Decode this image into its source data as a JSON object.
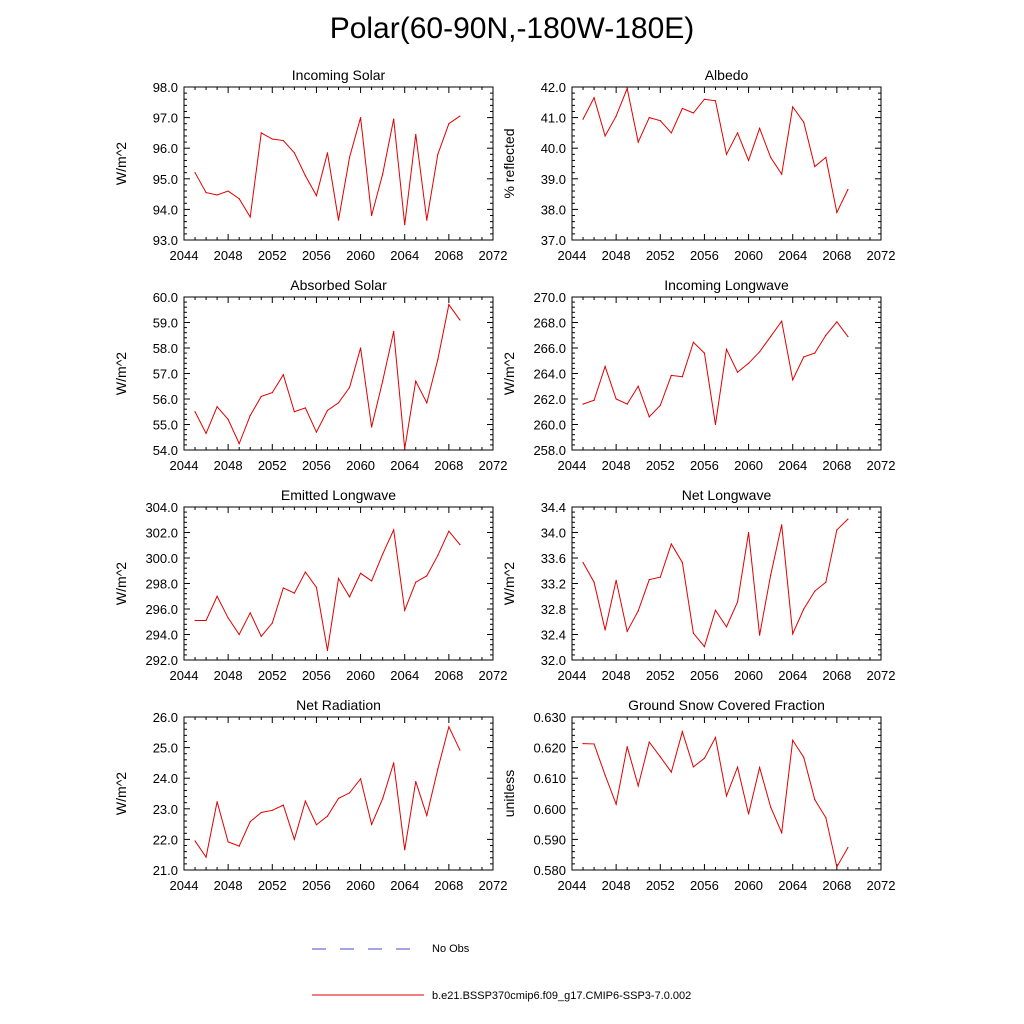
{
  "page_title": "Polar(60-90N,-180W-180E)",
  "legend": {
    "obs_label": "No Obs",
    "obs_color": "#4a4ac8",
    "model_label": "b.e21.BSSP370cmip6.f09_g17.CMIP6-SSP3-7.0.002",
    "model_color": "#e00000"
  },
  "chart_data": [
    {
      "type": "line",
      "title": "Incoming Solar",
      "xlabel": "",
      "ylabel": "W/m^2",
      "xlim": [
        2044,
        2072
      ],
      "ylim": [
        93.0,
        98.0
      ],
      "xticks": [
        "2044",
        "2048",
        "2052",
        "2056",
        "2060",
        "2064",
        "2068",
        "2072"
      ],
      "yticks": [
        "93.0",
        "94.0",
        "95.0",
        "96.0",
        "97.0",
        "98.0"
      ],
      "x": [
        2045,
        2046,
        2047,
        2048,
        2049,
        2050,
        2051,
        2052,
        2053,
        2054,
        2055,
        2056,
        2057,
        2058,
        2059,
        2060,
        2061,
        2062,
        2063,
        2064,
        2065,
        2066,
        2067,
        2068,
        2069
      ],
      "series": [
        {
          "name": "b.e21.BSSP370cmip6.f09_g17.CMIP6-SSP3-7.0.002",
          "values": [
            95.2,
            94.55,
            94.47,
            94.6,
            94.35,
            93.75,
            96.5,
            96.3,
            96.25,
            95.85,
            95.1,
            94.45,
            95.85,
            93.65,
            95.7,
            97.0,
            93.8,
            95.15,
            96.95,
            93.5,
            96.45,
            93.65,
            95.8,
            96.8,
            97.05
          ]
        }
      ]
    },
    {
      "type": "line",
      "title": "Albedo",
      "xlabel": "",
      "ylabel": "% reflected",
      "xlim": [
        2044,
        2072
      ],
      "ylim": [
        37.0,
        42.0
      ],
      "xticks": [
        "2044",
        "2048",
        "2052",
        "2056",
        "2060",
        "2064",
        "2068",
        "2072"
      ],
      "yticks": [
        "37.0",
        "38.0",
        "39.0",
        "40.0",
        "41.0",
        "42.0"
      ],
      "x": [
        2045,
        2046,
        2047,
        2048,
        2049,
        2050,
        2051,
        2052,
        2053,
        2054,
        2055,
        2056,
        2057,
        2058,
        2059,
        2060,
        2061,
        2062,
        2063,
        2064,
        2065,
        2066,
        2067,
        2068,
        2069
      ],
      "series": [
        {
          "name": "b.e21.BSSP370cmip6.f09_g17.CMIP6-SSP3-7.0.002",
          "values": [
            40.95,
            41.65,
            40.4,
            41.05,
            41.95,
            40.2,
            41.0,
            40.9,
            40.5,
            41.3,
            41.15,
            41.6,
            41.55,
            39.8,
            40.5,
            39.6,
            40.65,
            39.7,
            39.15,
            41.35,
            40.85,
            39.4,
            39.7,
            37.9,
            38.65
          ]
        }
      ]
    },
    {
      "type": "line",
      "title": "Absorbed Solar",
      "xlabel": "",
      "ylabel": "W/m^2",
      "xlim": [
        2044,
        2072
      ],
      "ylim": [
        54.0,
        60.0
      ],
      "xticks": [
        "2044",
        "2048",
        "2052",
        "2056",
        "2060",
        "2064",
        "2068",
        "2072"
      ],
      "yticks": [
        "54.0",
        "55.0",
        "56.0",
        "57.0",
        "58.0",
        "59.0",
        "60.0"
      ],
      "x": [
        2045,
        2046,
        2047,
        2048,
        2049,
        2050,
        2051,
        2052,
        2053,
        2054,
        2055,
        2056,
        2057,
        2058,
        2059,
        2060,
        2061,
        2062,
        2063,
        2064,
        2065,
        2066,
        2067,
        2068,
        2069
      ],
      "series": [
        {
          "name": "b.e21.BSSP370cmip6.f09_g17.CMIP6-SSP3-7.0.002",
          "values": [
            55.5,
            54.65,
            55.7,
            55.2,
            54.25,
            55.35,
            56.1,
            56.25,
            56.95,
            55.5,
            55.65,
            54.7,
            55.55,
            55.85,
            56.45,
            58.0,
            54.9,
            56.7,
            58.65,
            54.05,
            56.7,
            55.85,
            57.55,
            59.7,
            59.1
          ]
        }
      ]
    },
    {
      "type": "line",
      "title": "Incoming Longwave",
      "xlabel": "",
      "ylabel": "W/m^2",
      "xlim": [
        2044,
        2072
      ],
      "ylim": [
        258.0,
        270.0
      ],
      "xticks": [
        "2044",
        "2048",
        "2052",
        "2056",
        "2060",
        "2064",
        "2068",
        "2072"
      ],
      "yticks": [
        "258.0",
        "260.0",
        "262.0",
        "264.0",
        "266.0",
        "268.0",
        "270.0"
      ],
      "x": [
        2045,
        2046,
        2047,
        2048,
        2049,
        2050,
        2051,
        2052,
        2053,
        2054,
        2055,
        2056,
        2057,
        2058,
        2059,
        2060,
        2061,
        2062,
        2063,
        2064,
        2065,
        2066,
        2067,
        2068,
        2069
      ],
      "series": [
        {
          "name": "b.e21.BSSP370cmip6.f09_g17.CMIP6-SSP3-7.0.002",
          "values": [
            261.6,
            261.9,
            264.55,
            262.0,
            261.6,
            263.0,
            260.6,
            261.5,
            263.85,
            263.75,
            266.45,
            265.6,
            260.0,
            265.9,
            264.1,
            264.8,
            265.7,
            266.9,
            268.1,
            263.5,
            265.3,
            265.6,
            267.0,
            268.05,
            266.9
          ]
        }
      ]
    },
    {
      "type": "line",
      "title": "Emitted Longwave",
      "xlabel": "",
      "ylabel": "W/m^2",
      "xlim": [
        2044,
        2072
      ],
      "ylim": [
        292.0,
        304.0
      ],
      "xticks": [
        "2044",
        "2048",
        "2052",
        "2056",
        "2060",
        "2064",
        "2068",
        "2072"
      ],
      "yticks": [
        "292.0",
        "294.0",
        "296.0",
        "298.0",
        "300.0",
        "302.0",
        "304.0"
      ],
      "x": [
        2045,
        2046,
        2047,
        2048,
        2049,
        2050,
        2051,
        2052,
        2053,
        2054,
        2055,
        2056,
        2057,
        2058,
        2059,
        2060,
        2061,
        2062,
        2063,
        2064,
        2065,
        2066,
        2067,
        2068,
        2069
      ],
      "series": [
        {
          "name": "b.e21.BSSP370cmip6.f09_g17.CMIP6-SSP3-7.0.002",
          "values": [
            295.1,
            295.1,
            297.0,
            295.3,
            294.0,
            295.7,
            293.85,
            294.9,
            297.65,
            297.25,
            298.9,
            297.7,
            292.75,
            298.4,
            296.95,
            298.8,
            298.2,
            300.3,
            302.2,
            295.9,
            298.1,
            298.6,
            300.2,
            302.1,
            301.05
          ]
        }
      ]
    },
    {
      "type": "line",
      "title": "Net Longwave",
      "xlabel": "",
      "ylabel": "W/m^2",
      "xlim": [
        2044,
        2072
      ],
      "ylim": [
        32.0,
        34.4
      ],
      "xticks": [
        "2044",
        "2048",
        "2052",
        "2056",
        "2060",
        "2064",
        "2068",
        "2072"
      ],
      "yticks": [
        "32.0",
        "32.4",
        "32.8",
        "33.2",
        "33.6",
        "34.0",
        "34.4"
      ],
      "x": [
        2045,
        2046,
        2047,
        2048,
        2049,
        2050,
        2051,
        2052,
        2053,
        2054,
        2055,
        2056,
        2057,
        2058,
        2059,
        2060,
        2061,
        2062,
        2063,
        2064,
        2065,
        2066,
        2067,
        2068,
        2069
      ],
      "series": [
        {
          "name": "b.e21.BSSP370cmip6.f09_g17.CMIP6-SSP3-7.0.002",
          "values": [
            33.53,
            33.22,
            32.47,
            33.25,
            32.45,
            32.77,
            33.26,
            33.3,
            33.82,
            33.53,
            32.42,
            32.21,
            32.78,
            32.52,
            32.91,
            34.0,
            32.39,
            33.33,
            34.12,
            32.41,
            32.8,
            33.08,
            33.22,
            34.04,
            34.21
          ]
        }
      ]
    },
    {
      "type": "line",
      "title": "Net Radiation",
      "xlabel": "",
      "ylabel": "W/m^2",
      "xlim": [
        2044,
        2072
      ],
      "ylim": [
        21.0,
        26.0
      ],
      "xticks": [
        "2044",
        "2048",
        "2052",
        "2056",
        "2060",
        "2064",
        "2068",
        "2072"
      ],
      "yticks": [
        "21.0",
        "22.0",
        "23.0",
        "24.0",
        "25.0",
        "26.0"
      ],
      "x": [
        2045,
        2046,
        2047,
        2048,
        2049,
        2050,
        2051,
        2052,
        2053,
        2054,
        2055,
        2056,
        2057,
        2058,
        2059,
        2060,
        2061,
        2062,
        2063,
        2064,
        2065,
        2066,
        2067,
        2068,
        2069
      ],
      "series": [
        {
          "name": "b.e21.BSSP370cmip6.f09_g17.CMIP6-SSP3-7.0.002",
          "values": [
            21.95,
            21.42,
            23.23,
            21.92,
            21.78,
            22.58,
            22.88,
            22.95,
            23.12,
            22.0,
            23.25,
            22.48,
            22.76,
            23.34,
            23.52,
            23.98,
            22.49,
            23.33,
            24.5,
            21.66,
            23.89,
            22.78,
            24.3,
            25.68,
            24.92
          ]
        }
      ]
    },
    {
      "type": "line",
      "title": "Ground Snow Covered Fraction",
      "xlabel": "",
      "ylabel": "unitless",
      "xlim": [
        2044,
        2072
      ],
      "ylim": [
        0.58,
        0.63
      ],
      "xticks": [
        "2044",
        "2048",
        "2052",
        "2056",
        "2060",
        "2064",
        "2068",
        "2072"
      ],
      "yticks": [
        "0.580",
        "0.590",
        "0.600",
        "0.610",
        "0.620",
        "0.630"
      ],
      "x": [
        2045,
        2046,
        2047,
        2048,
        2049,
        2050,
        2051,
        2052,
        2053,
        2054,
        2055,
        2056,
        2057,
        2058,
        2059,
        2060,
        2061,
        2062,
        2063,
        2064,
        2065,
        2066,
        2067,
        2068,
        2069
      ],
      "series": [
        {
          "name": "b.e21.BSSP370cmip6.f09_g17.CMIP6-SSP3-7.0.002",
          "values": [
            0.6213,
            0.6212,
            0.611,
            0.6015,
            0.6203,
            0.6075,
            0.6218,
            0.617,
            0.612,
            0.6252,
            0.6137,
            0.6165,
            0.6233,
            0.6042,
            0.6136,
            0.5983,
            0.6135,
            0.6006,
            0.5922,
            0.6224,
            0.6168,
            0.603,
            0.5971,
            0.581,
            0.5873
          ]
        }
      ]
    }
  ]
}
